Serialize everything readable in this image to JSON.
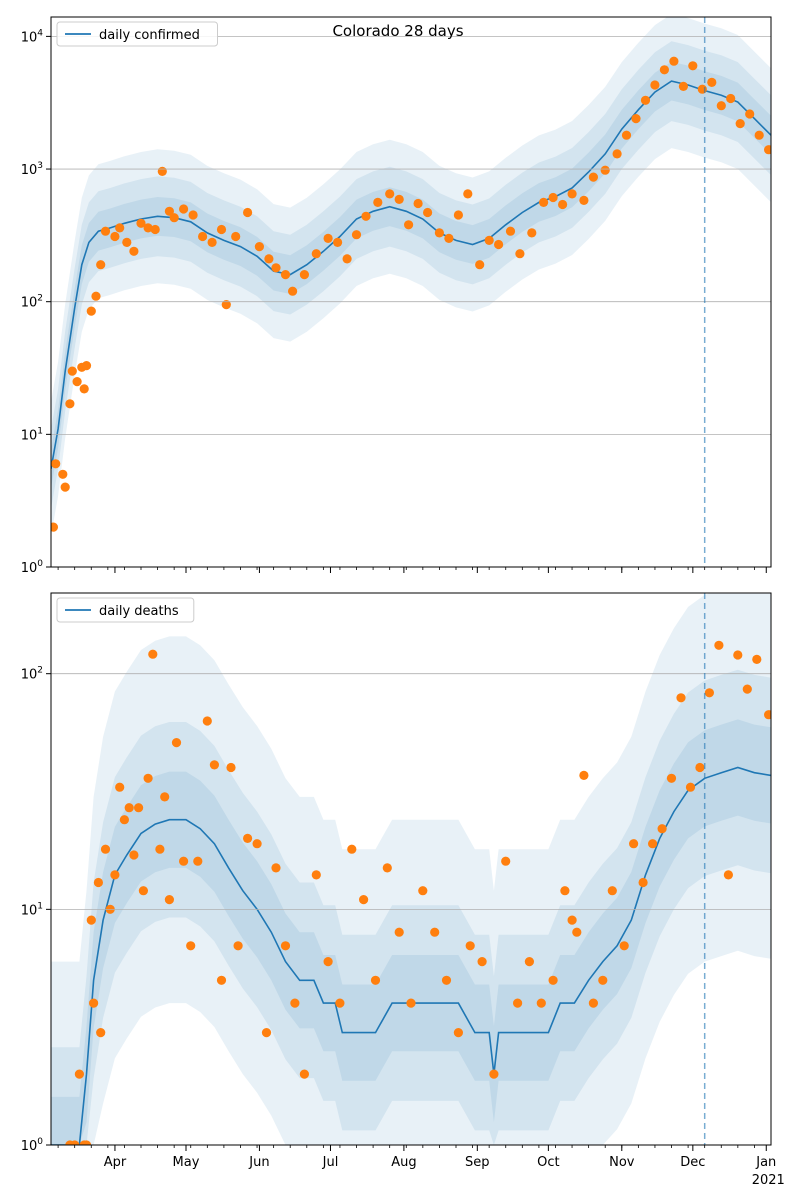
{
  "figure": {
    "title": "Colorado 28 days",
    "colors": {
      "line": "#1f77b4",
      "points": "#ff7f0e",
      "band": "#1f77b4",
      "grid": "#b0b0b0",
      "vline": "#1f77b4"
    }
  },
  "chart_data": [
    {
      "type": "line",
      "panel": "top",
      "title": "Colorado 28 days",
      "legend": [
        "daily confirmed"
      ],
      "legend_position": "upper-left",
      "yscale": "log",
      "ylim": [
        1,
        14000
      ],
      "yticks": [
        1,
        10,
        100,
        1000,
        10000
      ],
      "ytick_labels": [
        "10^0",
        "10^1",
        "10^2",
        "10^3",
        "10^4"
      ],
      "xlim": [
        "2020-03-05",
        "2021-01-03"
      ],
      "vline_date": "2020-12-06",
      "grid": "horizontal",
      "series": [
        {
          "name": "daily confirmed",
          "kind": "line",
          "x": [
            "2020-03-05",
            "2020-03-08",
            "2020-03-11",
            "2020-03-15",
            "2020-03-18",
            "2020-03-21",
            "2020-03-25",
            "2020-03-30",
            "2020-04-05",
            "2020-04-12",
            "2020-04-19",
            "2020-04-26",
            "2020-05-03",
            "2020-05-10",
            "2020-05-17",
            "2020-05-24",
            "2020-05-31",
            "2020-06-07",
            "2020-06-14",
            "2020-06-21",
            "2020-06-28",
            "2020-07-05",
            "2020-07-12",
            "2020-07-19",
            "2020-07-26",
            "2020-08-02",
            "2020-08-09",
            "2020-08-16",
            "2020-08-23",
            "2020-08-30",
            "2020-09-06",
            "2020-09-13",
            "2020-09-20",
            "2020-09-27",
            "2020-10-04",
            "2020-10-11",
            "2020-10-18",
            "2020-10-25",
            "2020-11-01",
            "2020-11-08",
            "2020-11-15",
            "2020-11-22",
            "2020-11-29",
            "2020-12-06",
            "2020-12-13",
            "2020-12-20",
            "2020-12-27",
            "2021-01-03"
          ],
          "y": [
            5.5,
            11,
            30,
            90,
            190,
            280,
            340,
            360,
            390,
            420,
            440,
            430,
            400,
            330,
            290,
            260,
            220,
            170,
            160,
            190,
            240,
            310,
            420,
            480,
            520,
            480,
            420,
            330,
            290,
            270,
            300,
            380,
            470,
            560,
            620,
            720,
            950,
            1300,
            2000,
            2800,
            3800,
            4600,
            4300,
            3900,
            3600,
            3200,
            2400,
            1800
          ]
        },
        {
          "name": "",
          "kind": "scatter",
          "x": [
            "2020-03-06",
            "2020-03-07",
            "2020-03-10",
            "2020-03-11",
            "2020-03-13",
            "2020-03-14",
            "2020-03-16",
            "2020-03-18",
            "2020-03-19",
            "2020-03-20",
            "2020-03-22",
            "2020-03-24",
            "2020-03-26",
            "2020-03-28",
            "2020-04-01",
            "2020-04-03",
            "2020-04-06",
            "2020-04-09",
            "2020-04-12",
            "2020-04-15",
            "2020-04-18",
            "2020-04-21",
            "2020-04-24",
            "2020-04-26",
            "2020-04-30",
            "2020-05-04",
            "2020-05-08",
            "2020-05-12",
            "2020-05-16",
            "2020-05-18",
            "2020-05-22",
            "2020-05-27",
            "2020-06-01",
            "2020-06-05",
            "2020-06-08",
            "2020-06-12",
            "2020-06-15",
            "2020-06-20",
            "2020-06-25",
            "2020-06-30",
            "2020-07-04",
            "2020-07-08",
            "2020-07-12",
            "2020-07-16",
            "2020-07-21",
            "2020-07-26",
            "2020-07-30",
            "2020-08-03",
            "2020-08-07",
            "2020-08-11",
            "2020-08-16",
            "2020-08-20",
            "2020-08-24",
            "2020-08-28",
            "2020-09-02",
            "2020-09-06",
            "2020-09-10",
            "2020-09-15",
            "2020-09-19",
            "2020-09-24",
            "2020-09-29",
            "2020-10-03",
            "2020-10-07",
            "2020-10-11",
            "2020-10-16",
            "2020-10-20",
            "2020-10-25",
            "2020-10-30",
            "2020-11-03",
            "2020-11-07",
            "2020-11-11",
            "2020-11-15",
            "2020-11-19",
            "2020-11-23",
            "2020-11-27",
            "2020-12-01",
            "2020-12-05",
            "2020-12-09",
            "2020-12-13",
            "2020-12-17",
            "2020-12-21",
            "2020-12-25",
            "2020-12-29",
            "2021-01-02"
          ],
          "y": [
            2,
            6,
            5,
            4,
            17,
            30,
            25,
            32,
            22,
            33,
            85,
            110,
            190,
            340,
            310,
            360,
            280,
            240,
            390,
            360,
            350,
            960,
            480,
            430,
            500,
            450,
            310,
            280,
            350,
            95,
            310,
            470,
            260,
            210,
            180,
            160,
            120,
            160,
            230,
            300,
            280,
            210,
            320,
            440,
            560,
            650,
            590,
            380,
            550,
            470,
            330,
            300,
            450,
            650,
            190,
            290,
            270,
            340,
            230,
            330,
            560,
            610,
            540,
            650,
            580,
            870,
            980,
            1300,
            1800,
            2400,
            3300,
            4300,
            5600,
            6500,
            4200,
            6000,
            4000,
            4500,
            3000,
            3400,
            2200,
            2600,
            1800,
            1400
          ]
        }
      ]
    },
    {
      "type": "line",
      "panel": "bottom",
      "title": "",
      "legend": [
        "daily deaths"
      ],
      "legend_position": "upper-left",
      "yscale": "log",
      "ylim": [
        1,
        220
      ],
      "yticks": [
        1,
        10,
        100
      ],
      "ytick_labels": [
        "10^0",
        "10^1",
        "10^2"
      ],
      "xlim": [
        "2020-03-05",
        "2021-01-03"
      ],
      "xtick_labels": [
        "Apr",
        "May",
        "Jun",
        "Jul",
        "Aug",
        "Sep",
        "Oct",
        "Nov",
        "Dec",
        "Jan"
      ],
      "xtick_dates": [
        "2020-04-01",
        "2020-05-01",
        "2020-06-01",
        "2020-07-01",
        "2020-08-01",
        "2020-09-01",
        "2020-10-01",
        "2020-11-01",
        "2020-12-01",
        "2021-01-01"
      ],
      "x_year_label": "2021",
      "vline_date": "2020-12-06",
      "grid": "horizontal",
      "series": [
        {
          "name": "daily deaths",
          "kind": "line",
          "x": [
            "2020-03-05",
            "2020-03-13",
            "2020-03-17",
            "2020-03-20",
            "2020-03-23",
            "2020-03-27",
            "2020-04-01",
            "2020-04-06",
            "2020-04-12",
            "2020-04-18",
            "2020-04-24",
            "2020-05-01",
            "2020-05-07",
            "2020-05-13",
            "2020-05-19",
            "2020-05-25",
            "2020-05-31",
            "2020-06-06",
            "2020-06-12",
            "2020-06-18",
            "2020-06-24",
            "2020-06-28",
            "2020-07-03",
            "2020-07-06",
            "2020-07-13",
            "2020-07-20",
            "2020-07-27",
            "2020-08-03",
            "2020-08-10",
            "2020-08-17",
            "2020-08-24",
            "2020-08-31",
            "2020-09-06",
            "2020-09-08",
            "2020-09-10",
            "2020-09-14",
            "2020-09-20",
            "2020-09-26",
            "2020-10-01",
            "2020-10-06",
            "2020-10-12",
            "2020-10-18",
            "2020-10-24",
            "2020-10-30",
            "2020-11-05",
            "2020-11-11",
            "2020-11-17",
            "2020-11-23",
            "2020-11-29",
            "2020-12-06",
            "2020-12-13",
            "2020-12-20",
            "2020-12-27",
            "2021-01-03"
          ],
          "y": [
            1,
            1,
            1,
            2,
            5,
            9,
            14,
            17,
            21,
            23,
            24,
            24,
            22,
            19,
            15,
            12,
            10,
            8,
            6,
            5,
            5,
            4,
            4,
            3,
            3,
            3,
            4,
            4,
            4,
            4,
            4,
            3,
            3,
            2,
            3,
            3,
            3,
            3,
            3,
            4,
            4,
            5,
            6,
            7,
            9,
            14,
            20,
            26,
            32,
            36,
            38,
            40,
            38,
            37
          ]
        },
        {
          "name": "",
          "kind": "scatter",
          "x": [
            "2020-03-13",
            "2020-03-15",
            "2020-03-17",
            "2020-03-19",
            "2020-03-20",
            "2020-03-22",
            "2020-03-23",
            "2020-03-25",
            "2020-03-26",
            "2020-03-28",
            "2020-03-30",
            "2020-04-01",
            "2020-04-03",
            "2020-04-05",
            "2020-04-07",
            "2020-04-09",
            "2020-04-11",
            "2020-04-13",
            "2020-04-15",
            "2020-04-17",
            "2020-04-20",
            "2020-04-22",
            "2020-04-24",
            "2020-04-27",
            "2020-04-30",
            "2020-05-03",
            "2020-05-06",
            "2020-05-10",
            "2020-05-13",
            "2020-05-16",
            "2020-05-20",
            "2020-05-23",
            "2020-05-27",
            "2020-05-31",
            "2020-06-04",
            "2020-06-08",
            "2020-06-12",
            "2020-06-16",
            "2020-06-20",
            "2020-06-25",
            "2020-06-30",
            "2020-07-05",
            "2020-07-10",
            "2020-07-15",
            "2020-07-20",
            "2020-07-25",
            "2020-07-30",
            "2020-08-04",
            "2020-08-09",
            "2020-08-14",
            "2020-08-19",
            "2020-08-24",
            "2020-08-29",
            "2020-09-03",
            "2020-09-08",
            "2020-09-13",
            "2020-09-18",
            "2020-09-23",
            "2020-09-28",
            "2020-10-03",
            "2020-10-08",
            "2020-10-11",
            "2020-10-13",
            "2020-10-16",
            "2020-10-20",
            "2020-10-24",
            "2020-10-28",
            "2020-11-02",
            "2020-11-06",
            "2020-11-10",
            "2020-11-14",
            "2020-11-18",
            "2020-11-22",
            "2020-11-26",
            "2020-11-30",
            "2020-12-04",
            "2020-12-08",
            "2020-12-12",
            "2020-12-16",
            "2020-12-20",
            "2020-12-24",
            "2020-12-28",
            "2021-01-02"
          ],
          "y": [
            1,
            1,
            2,
            1,
            1,
            9,
            4,
            13,
            3,
            18,
            10,
            14,
            33,
            24,
            27,
            17,
            27,
            12,
            36,
            121,
            18,
            30,
            11,
            51,
            16,
            7,
            16,
            63,
            41,
            5,
            40,
            7,
            20,
            19,
            3,
            15,
            7,
            4,
            2,
            14,
            6,
            4,
            18,
            11,
            5,
            15,
            8,
            4,
            12,
            8,
            5,
            3,
            7,
            6,
            2,
            16,
            4,
            6,
            4,
            5,
            12,
            9,
            8,
            37,
            4,
            5,
            12,
            7,
            19,
            13,
            19,
            22,
            36,
            79,
            33,
            40,
            83,
            132,
            14,
            120,
            86,
            115,
            67
          ]
        }
      ]
    }
  ]
}
